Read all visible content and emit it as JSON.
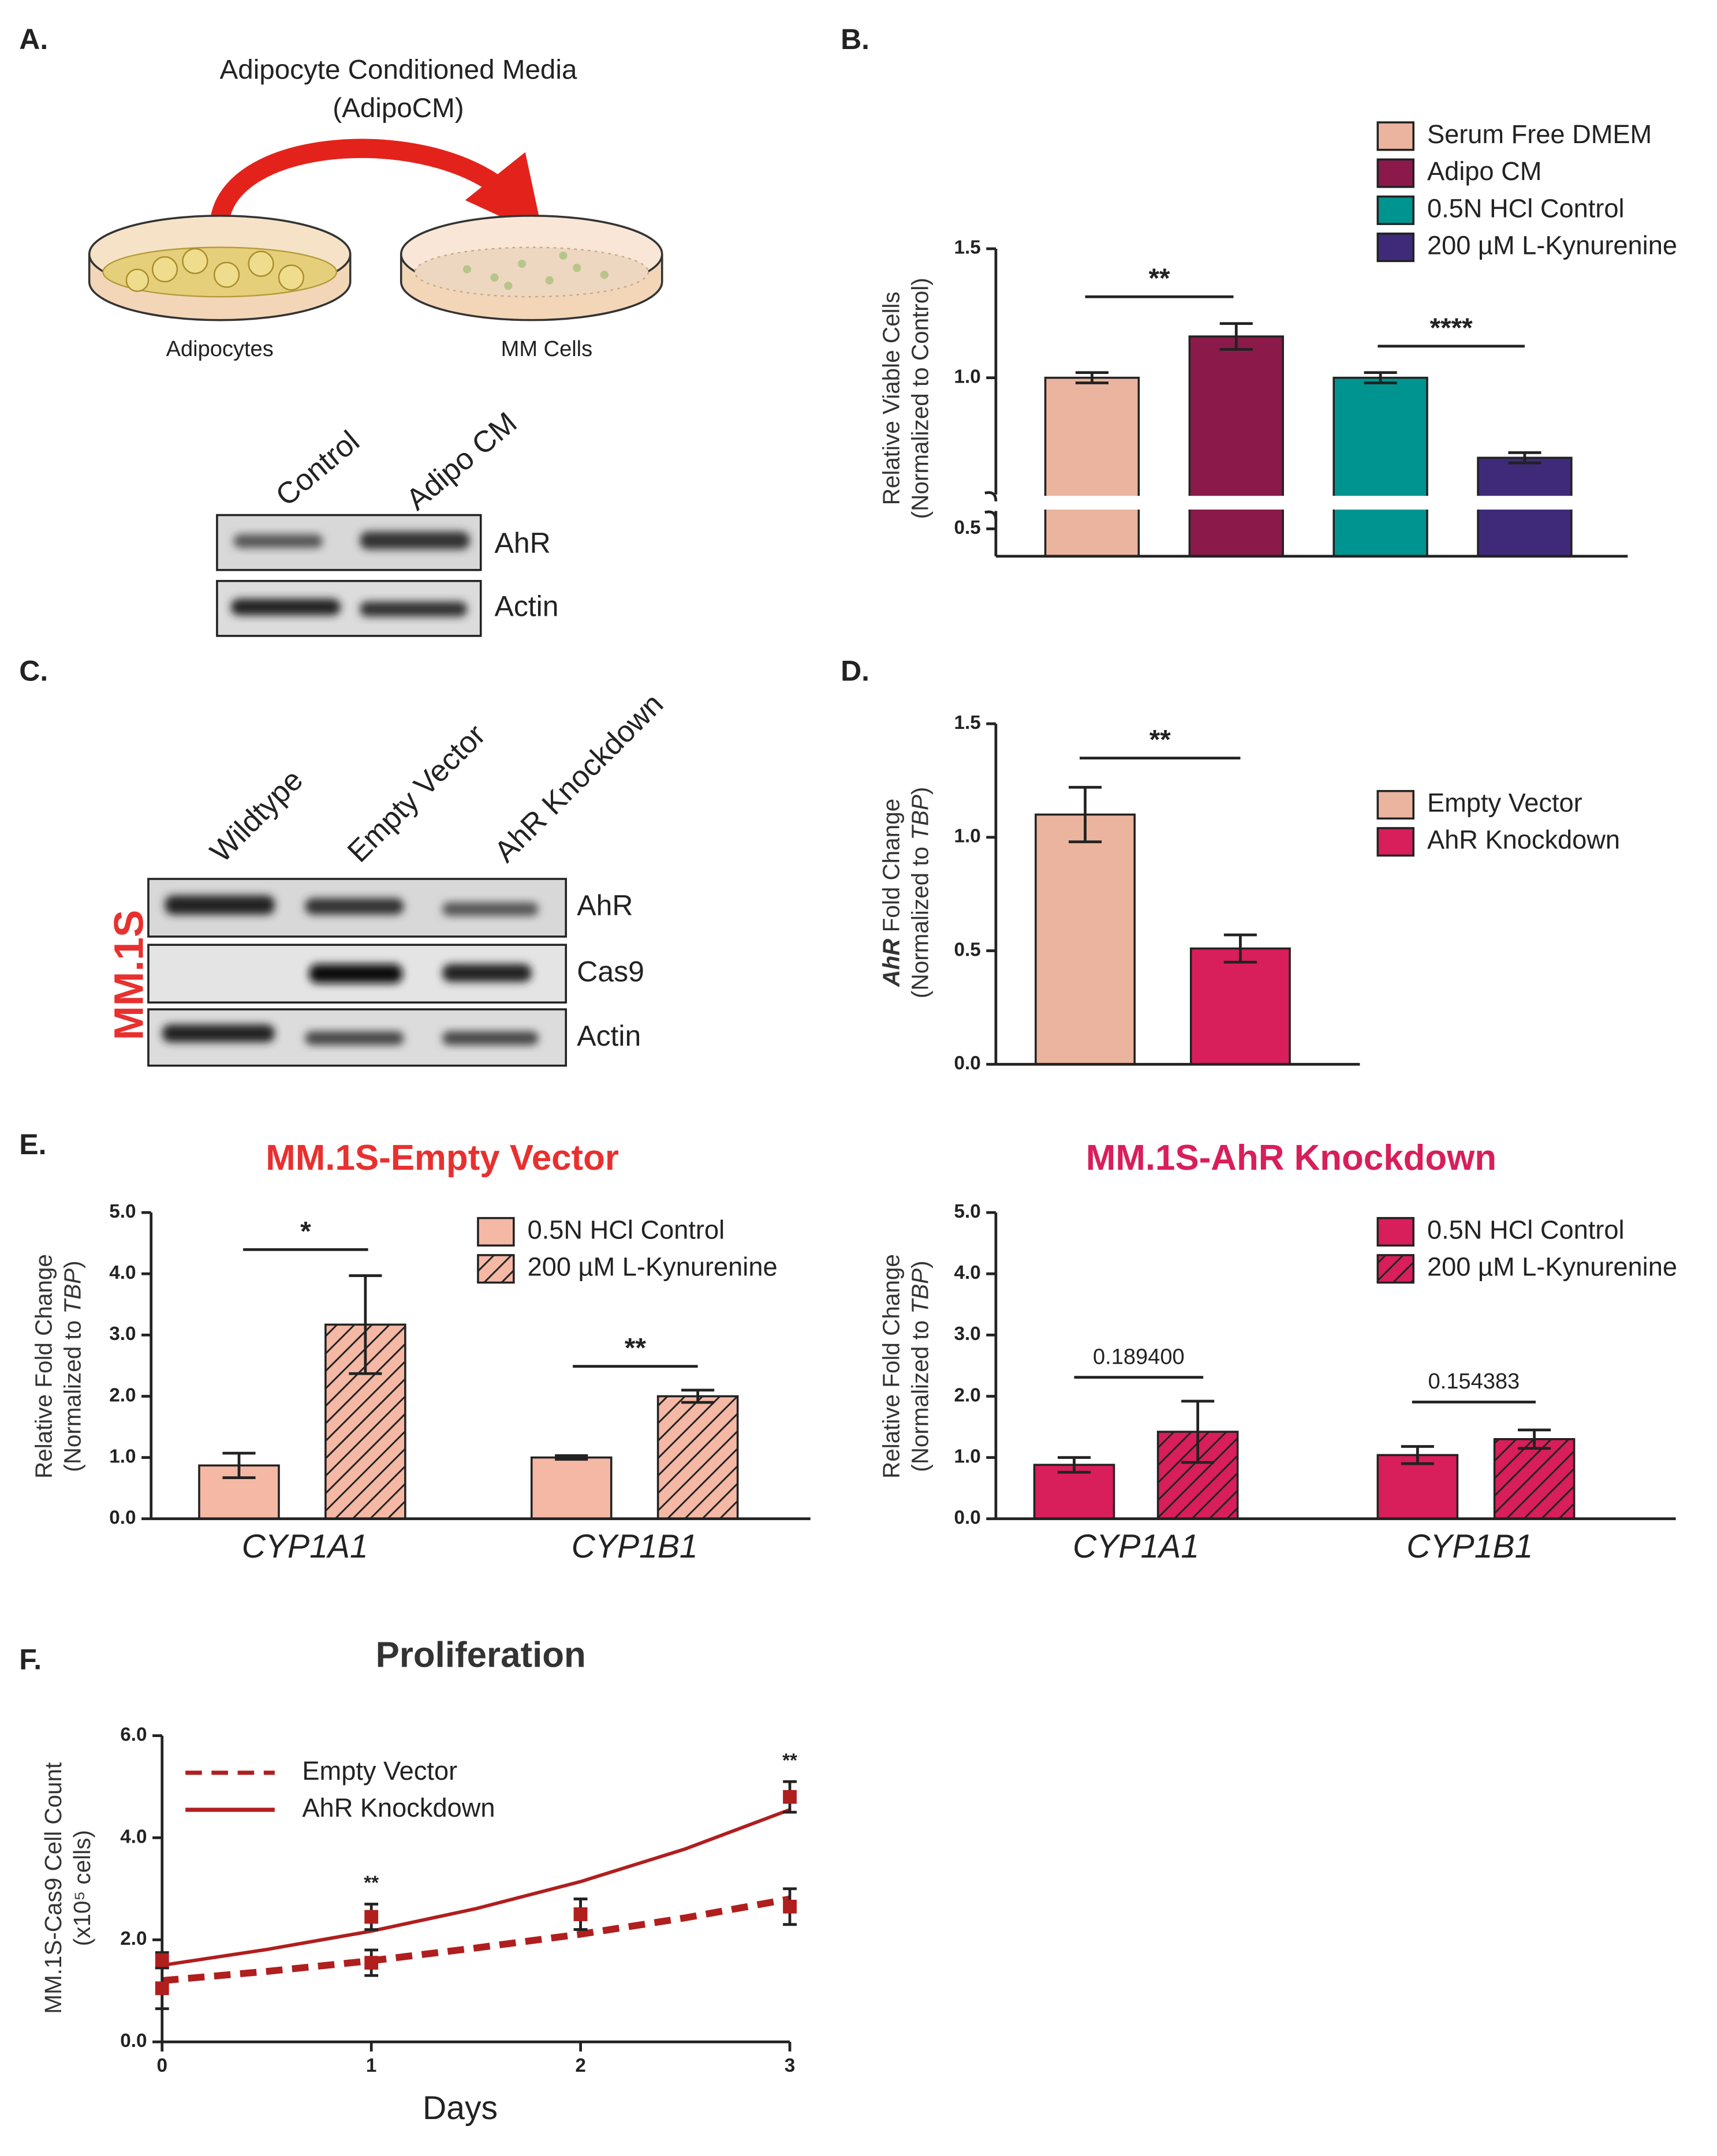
{
  "panel_labels": [
    "A.",
    "B.",
    "C.",
    "D.",
    "E.",
    "F."
  ],
  "panel_a": {
    "title": [
      "Adipocyte Conditioned Media",
      "(AdipoCM)"
    ],
    "dish_labels": [
      "Adipocytes",
      "MM Cells"
    ],
    "lanes": [
      "Control",
      "Adipo CM"
    ],
    "bands": [
      "AhR",
      "Actin"
    ]
  },
  "panel_c": {
    "cell_line": "MM.1S",
    "lanes": [
      "Wildtype",
      "Empty Vector",
      "AhR Knockdown"
    ],
    "bands": [
      "AhR",
      "Cas9",
      "Actin"
    ]
  },
  "chart_data": [
    {
      "type": "bar",
      "y_label": [
        [
          "Relative Viable Cells"
        ],
        [
          "(Normalized to Control)"
        ]
      ],
      "ylim": [
        0.5,
        1.5
      ],
      "yticks": [
        0.5,
        {
          "value": 1,
          "label": "1.0"
        },
        1.5
      ],
      "axis_break": true,
      "series": [
        {
          "name": "Serum Free DMEM",
          "color": "#ebb49e",
          "values": [
            1.0
          ],
          "errors": [
            0.02
          ]
        },
        {
          "name": "Adipo CM",
          "color": "#8b1a4a",
          "values": [
            1.16
          ],
          "errors": [
            0.05
          ]
        },
        {
          "name": "0.5N HCl Control",
          "color": "#009490",
          "values": [
            1.0
          ],
          "errors": [
            0.02
          ]
        },
        {
          "name": "200 µM L-Kynurenine",
          "color": "#3f2a7a",
          "values": [
            0.69
          ],
          "errors": [
            0.02
          ]
        }
      ],
      "significance": [
        "**",
        "****"
      ]
    },
    {
      "type": "bar",
      "y_label": [
        [
          "AhR",
          " Fold Change"
        ],
        [
          "(Normalized to ",
          "TBP",
          ")"
        ]
      ],
      "ylim": [
        0,
        1.5
      ],
      "yticks": [
        {
          "value": 0,
          "label": "0.0"
        },
        0.5,
        {
          "value": 1,
          "label": "1.0"
        },
        1.5
      ],
      "series": [
        {
          "name": "Empty Vector",
          "color": "#ebb49e",
          "values": [
            1.1
          ],
          "errors": [
            0.12
          ]
        },
        {
          "name": "AhR Knockdown",
          "color": "#d81e5b",
          "values": [
            0.51
          ],
          "errors": [
            0.06
          ]
        }
      ],
      "significance": [
        "**"
      ]
    },
    {
      "type": "bar",
      "title": "MM.1S-Empty Vector",
      "title_color": "#e8302f",
      "y_label": [
        [
          "Relative Fold Change"
        ],
        [
          "(Normalized to ",
          "TBP",
          ")"
        ]
      ],
      "categories": [
        "CYP1A1",
        "CYP1B1"
      ],
      "ylim": [
        0,
        5
      ],
      "yticks": [
        {
          "value": 0,
          "label": "0.0"
        },
        {
          "value": 1,
          "label": "1.0"
        },
        {
          "value": 2,
          "label": "2.0"
        },
        {
          "value": 3,
          "label": "3.0"
        },
        {
          "value": 4,
          "label": "4.0"
        },
        {
          "value": 5,
          "label": "5.0"
        }
      ],
      "series": [
        {
          "name": "0.5N HCl Control",
          "color": "#f4b8a4",
          "hatch": false,
          "values": [
            0.87,
            1.0
          ],
          "errors": [
            0.2,
            0.03
          ]
        },
        {
          "name": "200 µM L-Kynurenine",
          "color": "#f4b8a4",
          "hatch": true,
          "values": [
            3.17,
            2.0
          ],
          "errors": [
            0.8,
            0.1
          ]
        }
      ],
      "significance": [
        "*",
        "**"
      ]
    },
    {
      "type": "bar",
      "title": "MM.1S-AhR Knockdown",
      "title_color": "#d81e5b",
      "y_label": [
        [
          "Relative Fold Change"
        ],
        [
          "(Normalized to ",
          "TBP",
          ")"
        ]
      ],
      "categories": [
        "CYP1A1",
        "CYP1B1"
      ],
      "ylim": [
        0,
        5
      ],
      "yticks": [
        {
          "value": 0,
          "label": "0.0"
        },
        {
          "value": 1,
          "label": "1.0"
        },
        {
          "value": 2,
          "label": "2.0"
        },
        {
          "value": 3,
          "label": "3.0"
        },
        {
          "value": 4,
          "label": "4.0"
        },
        {
          "value": 5,
          "label": "5.0"
        }
      ],
      "series": [
        {
          "name": "0.5N HCl Control",
          "color": "#d81e5b",
          "hatch": false,
          "values": [
            0.88,
            1.04
          ],
          "errors": [
            0.12,
            0.14
          ]
        },
        {
          "name": "200 µM L-Kynurenine",
          "color": "#d81e5b",
          "hatch": true,
          "values": [
            1.42,
            1.3
          ],
          "errors": [
            0.5,
            0.15
          ]
        }
      ],
      "significance": [
        "0.189400",
        "0.154383"
      ]
    },
    {
      "type": "line",
      "title": "Proliferation",
      "x_label": "Days",
      "y_label": [
        [
          "MM.1S-Cas9 Cell Count"
        ],
        [
          "(x10⁵ cells)"
        ]
      ],
      "x": [
        0,
        1,
        2,
        3
      ],
      "fit_x": [
        0,
        0.5,
        1,
        1.5,
        2,
        2.5,
        3
      ],
      "xlim": [
        0,
        3
      ],
      "xticks": [
        0,
        1,
        2,
        3
      ],
      "ylim": [
        0,
        6
      ],
      "yticks": [
        {
          "value": 0,
          "label": "0.0"
        },
        {
          "value": 2,
          "label": "2.0"
        },
        {
          "value": 4,
          "label": "4.0"
        },
        {
          "value": 6,
          "label": "6.0"
        }
      ],
      "series": [
        {
          "name": "Empty Vector",
          "color": "#b01e1e",
          "dashed": true,
          "values": [
            1.05,
            1.55,
            2.5,
            2.65
          ],
          "errors": [
            0.4,
            0.25,
            0.3,
            0.35
          ],
          "fit": [
            1.2,
            1.38,
            1.59,
            1.84,
            2.11,
            2.43,
            2.8
          ]
        },
        {
          "name": "AhR Knockdown",
          "color": "#b01e1e",
          "dashed": false,
          "values": [
            1.6,
            2.45,
            2.5,
            4.8
          ],
          "errors": [
            0.15,
            0.25,
            0.3,
            0.3
          ],
          "fit": [
            1.5,
            1.81,
            2.17,
            2.61,
            3.14,
            3.78,
            4.55
          ]
        }
      ],
      "significance": [
        "**",
        "**"
      ]
    }
  ]
}
